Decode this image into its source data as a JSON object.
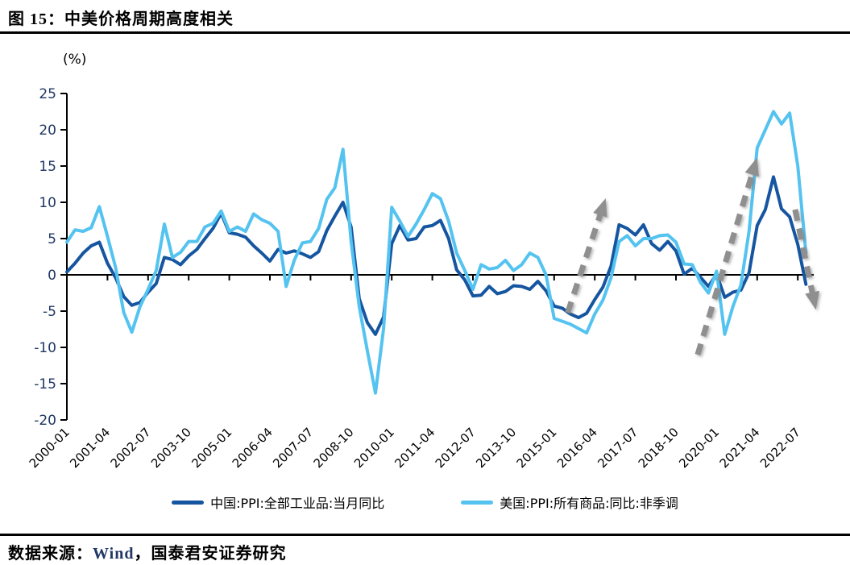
{
  "title": "图 15：中美价格周期高度相关",
  "footer": {
    "prefix": "数据来源：",
    "source": "Wind",
    "suffix": "，国泰君安证券研究"
  },
  "colors": {
    "china_line": "#1656A0",
    "us_line": "#55C3F0",
    "arrow": "#8F8F8F",
    "axis": "#000000",
    "y_tick_label": "#1F3864",
    "x_tick_label": "#000000"
  },
  "chart_data": {
    "type": "line",
    "title": "图 15：中美价格周期高度相关",
    "unit_label": "(%)",
    "grid": false,
    "legend_position": "bottom",
    "ylim": [
      -20,
      25
    ],
    "y_ticks": [
      25,
      20,
      15,
      10,
      5,
      0,
      -5,
      -10,
      -15,
      -20
    ],
    "x_start": "2000-01",
    "x_end": "2022-10",
    "month_step": 3,
    "x_tick_step_months": 15,
    "x_tick_labels": [
      "2000-01",
      "2001-04",
      "2002-07",
      "2003-10",
      "2005-01",
      "2006-04",
      "2007-07",
      "2008-10",
      "2010-01",
      "2011-04",
      "2012-07",
      "2013-10",
      "2015-01",
      "2016-04",
      "2017-07",
      "2018-10",
      "2020-01",
      "2021-04",
      "2022-07"
    ],
    "series": [
      {
        "key": "china-ppi",
        "name": "中国:PPI:全部工业品:当月同比",
        "color": "#1656A0",
        "values": [
          0.4,
          1.6,
          3.0,
          4.0,
          4.5,
          1.6,
          -0.4,
          -3.0,
          -4.2,
          -3.8,
          -2.4,
          -1.2,
          2.4,
          2.1,
          1.4,
          2.6,
          3.5,
          5.0,
          6.4,
          8.5,
          5.8,
          5.6,
          5.2,
          4.0,
          3.0,
          1.9,
          3.5,
          3.0,
          3.3,
          2.9,
          2.4,
          3.2,
          6.1,
          8.1,
          10.0,
          6.6,
          -3.3,
          -6.6,
          -8.2,
          -5.8,
          4.3,
          6.8,
          4.8,
          5.0,
          6.6,
          6.8,
          7.5,
          5.0,
          0.7,
          -0.7,
          -2.9,
          -2.8,
          -1.6,
          -2.6,
          -2.3,
          -1.5,
          -1.6,
          -2.0,
          -0.9,
          -2.2,
          -4.3,
          -4.6,
          -5.4,
          -5.9,
          -5.3,
          -3.4,
          -1.7,
          1.2,
          6.9,
          6.4,
          5.5,
          6.9,
          4.3,
          3.4,
          4.6,
          3.3,
          0.1,
          0.9,
          -0.3,
          -1.6,
          0.1,
          -3.1,
          -2.4,
          -2.1,
          0.3,
          6.8,
          9.0,
          13.5,
          9.1,
          8.0,
          4.2,
          -1.3
        ]
      },
      {
        "key": "us-ppi",
        "name": "美国:PPI:所有商品:同比:非季调",
        "color": "#55C3F0",
        "values": [
          4.5,
          6.2,
          6.0,
          6.5,
          9.4,
          5.3,
          1.0,
          -5.2,
          -7.9,
          -4.4,
          -2.0,
          0.6,
          7.0,
          2.4,
          3.1,
          4.6,
          4.6,
          6.6,
          7.1,
          8.8,
          6.0,
          6.6,
          6.0,
          8.4,
          7.6,
          7.1,
          6.0,
          -1.6,
          2.0,
          4.4,
          4.6,
          6.4,
          10.4,
          12.0,
          17.3,
          4.6,
          -4.4,
          -10.5,
          -16.3,
          -7.4,
          9.3,
          7.4,
          5.3,
          7.0,
          9.0,
          11.2,
          10.5,
          7.4,
          3.0,
          0.6,
          -2.0,
          1.4,
          0.8,
          1.0,
          2.0,
          0.6,
          1.4,
          3.0,
          2.4,
          0.0,
          -6.0,
          -6.4,
          -6.8,
          -7.4,
          -8.0,
          -5.4,
          -3.5,
          -0.4,
          4.6,
          5.4,
          4.0,
          5.0,
          5.0,
          5.4,
          5.5,
          4.5,
          1.5,
          1.4,
          -1.0,
          -2.5,
          0.5,
          -8.2,
          -4.4,
          -1.4,
          6.0,
          17.5,
          20.0,
          22.5,
          20.8,
          22.3,
          15.0,
          3.0
        ]
      }
    ],
    "annotations": {
      "arrow_color": "#8F8F8F",
      "arrows": [
        {
          "name": "up-trend-2016",
          "m1": 185,
          "v1": -5.2,
          "m2": 198,
          "v2": 9.4
        },
        {
          "name": "up-trend-2021",
          "m1": 233,
          "v1": -11.0,
          "m2": 254,
          "v2": 15.0
        },
        {
          "name": "down-trend-2022",
          "m1": 269,
          "v1": 9.0,
          "m2": 276,
          "v2": -3.6
        }
      ]
    }
  }
}
